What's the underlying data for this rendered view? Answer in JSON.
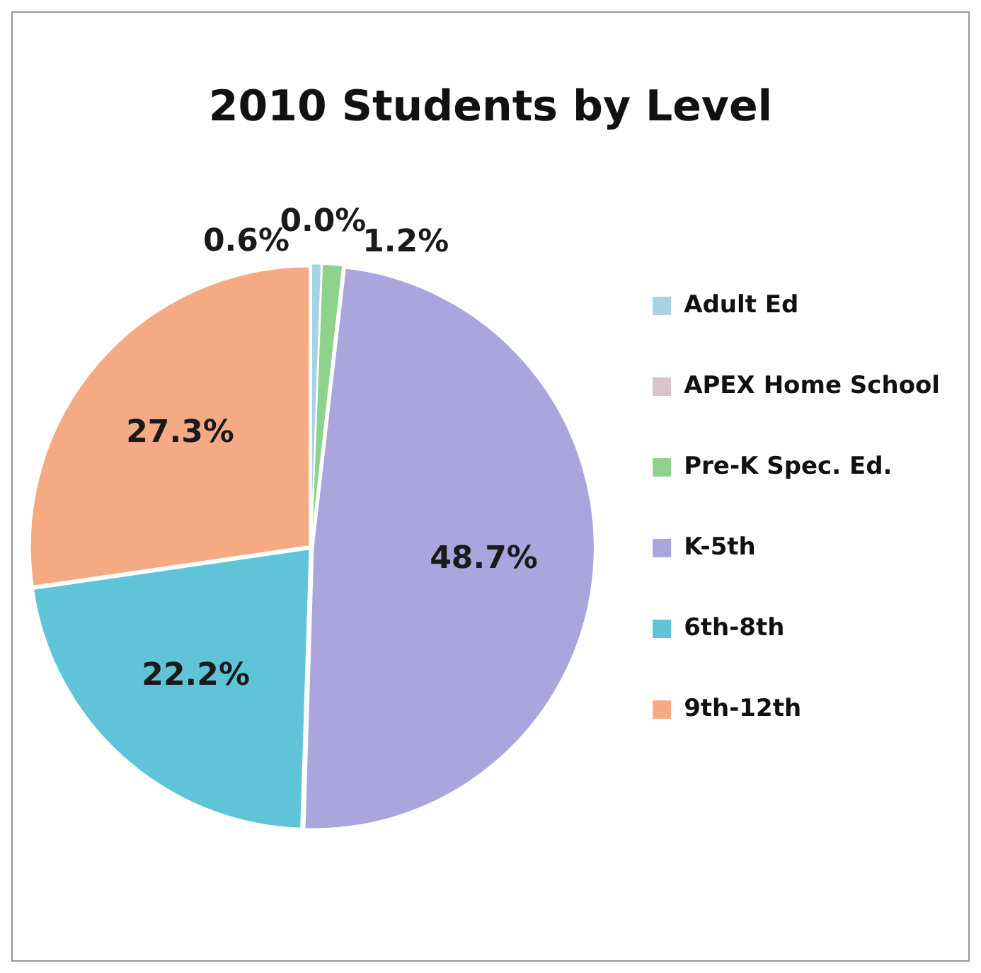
{
  "chart_data": {
    "type": "pie",
    "title": "2010 Students by Level",
    "categories": [
      "Adult Ed",
      "APEX Home School",
      "Pre-K Spec. Ed.",
      "K-5th",
      "6th-8th",
      "9th-12th"
    ],
    "values": [
      0.6,
      0.0,
      1.2,
      48.7,
      22.2,
      27.3
    ],
    "colors": [
      "#a8d3e6",
      "#d9c3cc",
      "#8fd28c",
      "#aaa5dd",
      "#5fc4d8",
      "#f5aa84"
    ],
    "value_labels": [
      "0.6%",
      "0.0%",
      "1.2%",
      "48.7%",
      "22.2%",
      "27.3%"
    ],
    "legend": "right"
  }
}
